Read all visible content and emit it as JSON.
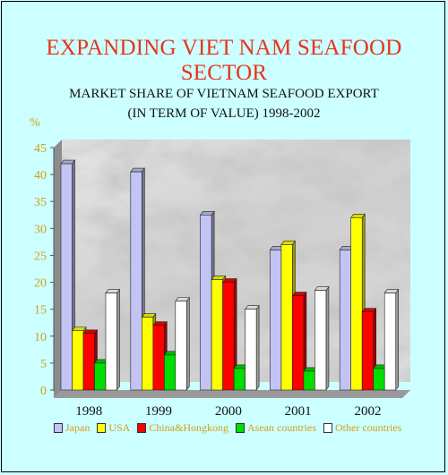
{
  "headline": "EXPANDING VIET NAM SEAFOOD SECTOR",
  "chart_data": {
    "type": "bar",
    "title_line1": "MARKET SHARE OF VIETNAM SEAFOOD EXPORT",
    "title_line2": "(IN TERM OF VALUE) 1998-2002",
    "ylabel": "%",
    "ylim": [
      0,
      45
    ],
    "yticks": [
      0,
      5,
      10,
      15,
      20,
      25,
      30,
      35,
      40,
      45
    ],
    "categories": [
      "1998",
      "1999",
      "2000",
      "2001",
      "2002"
    ],
    "series": [
      {
        "name": "Japan",
        "color": "#c4c4f4",
        "values": [
          42,
          40.5,
          32.5,
          26,
          26
        ]
      },
      {
        "name": "USA",
        "color": "#ffff00",
        "values": [
          11,
          13.5,
          20.5,
          27,
          32
        ]
      },
      {
        "name": "China&Hongkong",
        "color": "#ff0000",
        "values": [
          10.5,
          12,
          20,
          17.5,
          14.5
        ]
      },
      {
        "name": "Asean countries",
        "color": "#00dd00",
        "values": [
          5,
          6.5,
          4,
          3.5,
          4
        ]
      },
      {
        "name": "Other countries",
        "color": "#ffffff",
        "values": [
          18,
          16.5,
          15,
          18.5,
          18
        ]
      }
    ],
    "grid": false,
    "legend_position": "bottom",
    "background": "marble"
  }
}
